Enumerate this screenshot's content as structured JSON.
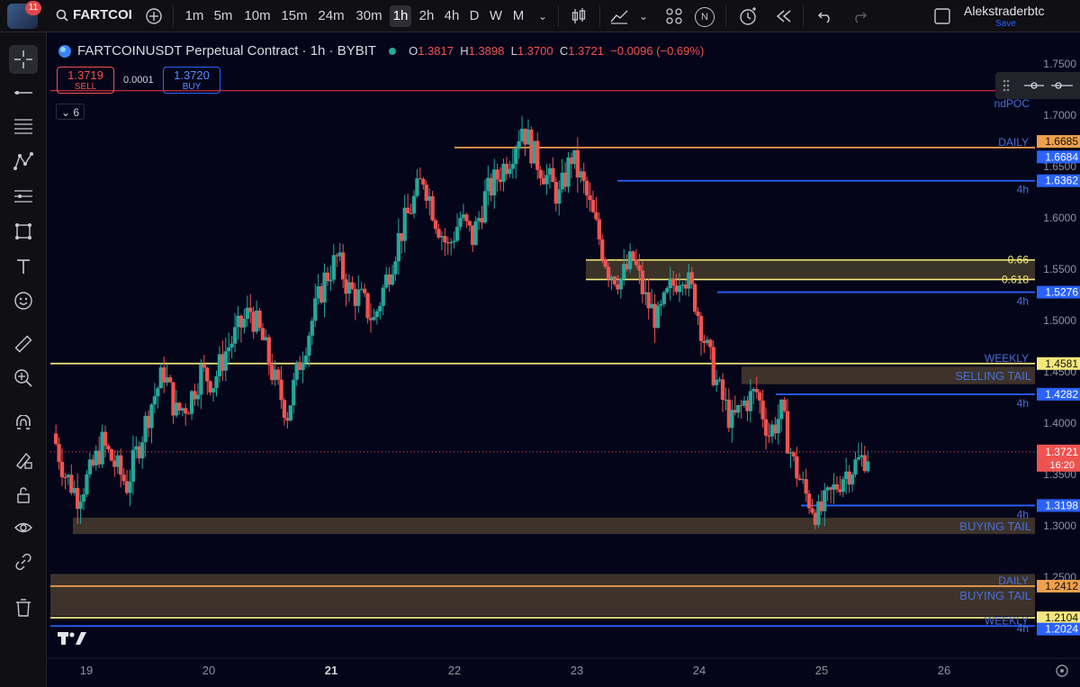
{
  "topbar": {
    "notification_count": "11",
    "symbol": "FARTCOI",
    "timeframes": [
      "1m",
      "5m",
      "10m",
      "15m",
      "24m",
      "30m",
      "1h",
      "2h",
      "4h",
      "D",
      "W",
      "M"
    ],
    "active_timeframe": "1h",
    "indicator_letter": "N",
    "user_name": "Alekstraderbtc",
    "save_label": "Save"
  },
  "legend": {
    "title": "FARTCOINUSDT Perpetual Contract · 1h · BYBIT",
    "o_label": "O",
    "o": "1.3817",
    "h_label": "H",
    "h": "1.3898",
    "l_label": "L",
    "l": "1.3700",
    "c_label": "C",
    "c": "1.3721",
    "change": "−0.0096 (−0.69%)"
  },
  "trade": {
    "sell_price": "1.3719",
    "sell_label": "SELL",
    "buy_price": "1.3720",
    "buy_label": "BUY",
    "spread": "0.0001",
    "indicators_count": "6"
  },
  "chart_data": {
    "type": "candlestick",
    "x_ticks": [
      "19",
      "20",
      "21",
      "22",
      "23",
      "24",
      "25",
      "26"
    ],
    "y_ticks": [
      "1.7500",
      "1.7000",
      "1.6500",
      "1.6000",
      "1.5500",
      "1.5000",
      "1.4500",
      "1.4000",
      "1.3500",
      "1.3000",
      "1.2500",
      "1.2000"
    ],
    "ylim": [
      1.19,
      1.755
    ],
    "current_price": "1.3721",
    "countdown": "16:20",
    "colors": {
      "up": "#26a69a",
      "down": "#ef5350",
      "weekly": "#f4e87c",
      "daily": "#f0a04b",
      "fourh": "#2962ff",
      "zone": "#6b5a3a"
    },
    "levels": [
      {
        "price": 1.6685,
        "label": "1.6685",
        "tag": "DAILY",
        "kind": "daily"
      },
      {
        "price": 1.6684,
        "label": "1.6684",
        "tag": "",
        "kind": "daily"
      },
      {
        "price": 1.6362,
        "label": "1.6362",
        "tag": "4h",
        "kind": "fourh"
      },
      {
        "price": 1.5276,
        "label": "1.5276",
        "tag": "4h",
        "kind": "fourh"
      },
      {
        "price": 1.4581,
        "label": "1.4581",
        "tag": "WEEKLY",
        "kind": "weekly"
      },
      {
        "price": 1.4282,
        "label": "1.4282",
        "tag": "4h",
        "kind": "fourh"
      },
      {
        "price": 1.3198,
        "label": "1.3198",
        "tag": "4h",
        "kind": "fourh"
      },
      {
        "price": 1.2412,
        "label": "1.2412",
        "tag": "DAILY",
        "kind": "daily"
      },
      {
        "price": 1.2104,
        "label": "1.2104",
        "tag": "",
        "kind": "weekly"
      },
      {
        "price": 1.2024,
        "label": "1.2024",
        "tag": "WEEKLY",
        "kind": "fourh"
      }
    ],
    "fib_levels": [
      {
        "price": 1.559,
        "label": "0.66"
      },
      {
        "price": 1.54,
        "label": "0.618"
      }
    ],
    "zones": [
      {
        "top": 1.455,
        "bottom": 1.438,
        "label": "SELLING TAIL"
      },
      {
        "top": 1.308,
        "bottom": 1.292,
        "label": "BUYING TAIL"
      },
      {
        "top": 1.253,
        "bottom": 1.212,
        "label": "BUYING TAIL"
      }
    ],
    "top_line": {
      "price": 1.724,
      "label": "ndPOC"
    },
    "extra_tags": [
      {
        "price": 1.2,
        "tag": "4h"
      }
    ],
    "candle_path": [
      1.39,
      1.35,
      1.33,
      1.35,
      1.38,
      1.36,
      1.34,
      1.38,
      1.42,
      1.45,
      1.41,
      1.42,
      1.45,
      1.44,
      1.47,
      1.49,
      1.51,
      1.48,
      1.44,
      1.41,
      1.46,
      1.5,
      1.54,
      1.56,
      1.53,
      1.52,
      1.5,
      1.54,
      1.58,
      1.61,
      1.64,
      1.6,
      1.57,
      1.6,
      1.58,
      1.62,
      1.64,
      1.66,
      1.69,
      1.66,
      1.64,
      1.62,
      1.66,
      1.63,
      1.59,
      1.55,
      1.54,
      1.56,
      1.52,
      1.5,
      1.53,
      1.55,
      1.52,
      1.47,
      1.43,
      1.4,
      1.42,
      1.43,
      1.39,
      1.41,
      1.36,
      1.33,
      1.31,
      1.33,
      1.35,
      1.36,
      1.37
    ]
  }
}
